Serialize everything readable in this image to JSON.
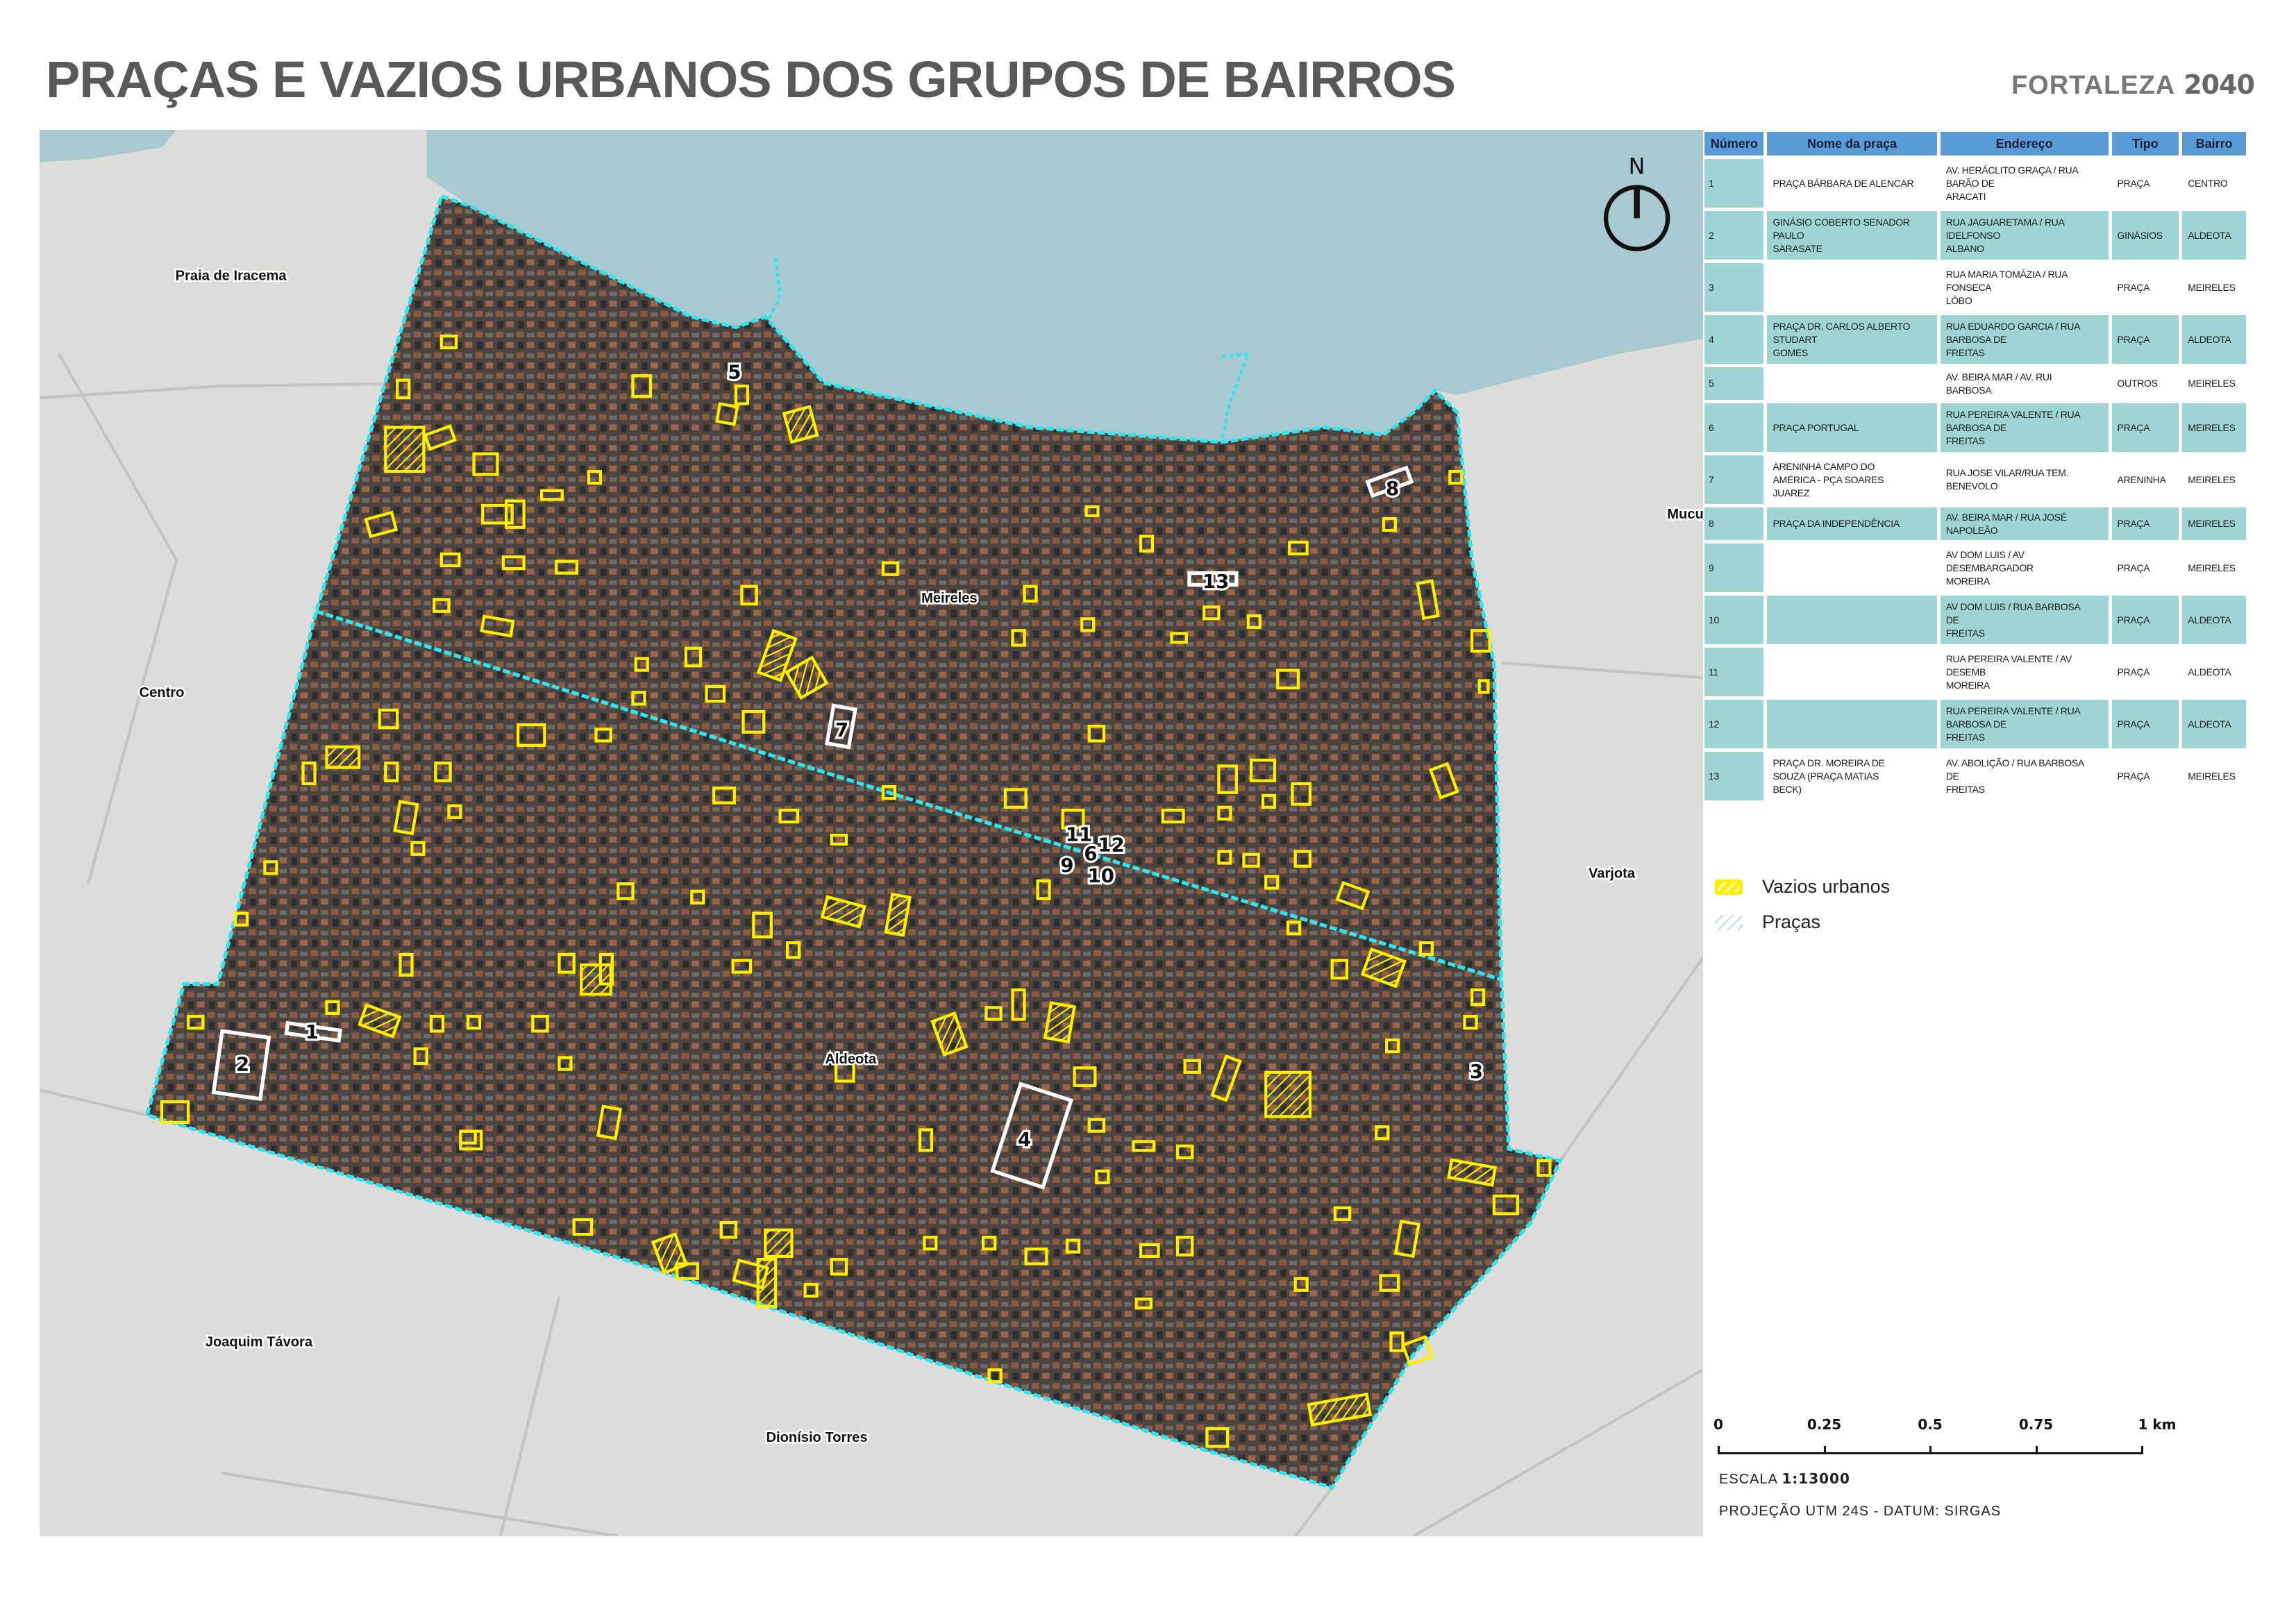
{
  "header": {
    "title": "PRAÇAS E VAZIOS URBANOS DOS GRUPOS DE BAIRROS",
    "brand_name": "FORTALEZA",
    "brand_year": "2040"
  },
  "table": {
    "columns": [
      "Número",
      "Nome da praça",
      "Endereço",
      "Tipo",
      "Bairro"
    ],
    "rows": [
      {
        "numero": "1",
        "nome": "PRAÇA BÁRBARA DE ALENCAR",
        "endereco": "AV. HERÁCLITO GRAÇA / RUA\nBARÃO DE\nARACATI",
        "tipo": "PRAÇA",
        "bairro": "CENTRO"
      },
      {
        "numero": "2",
        "nome": "GINÁSIO COBERTO SENADOR\nPAULO\nSARASATE",
        "endereco": "RUA JAGUARETAMA / RUA\nIDELFONSO\nALBANO",
        "tipo": "GINÁSIOS",
        "bairro": "ALDEOTA"
      },
      {
        "numero": "3",
        "nome": "",
        "endereco": "RUA MARIA TOMÁZIA / RUA\nFONSECA\nLÔBO",
        "tipo": "PRAÇA",
        "bairro": "MEIRELES"
      },
      {
        "numero": "4",
        "nome": "PRAÇA DR. CARLOS ALBERTO\nSTUDART\nGOMES",
        "endereco": "RUA EDUARDO GARCIA / RUA\nBARBOSA DE\nFREITAS",
        "tipo": "PRAÇA",
        "bairro": "ALDEOTA"
      },
      {
        "numero": "5",
        "nome": "",
        "endereco": "AV. BEIRA MAR / AV. RUI\nBARBOSA",
        "tipo": "OUTROS",
        "bairro": "MEIRELES"
      },
      {
        "numero": "6",
        "nome": "PRAÇA PORTUGAL",
        "endereco": "RUA PEREIRA VALENTE / RUA\nBARBOSA DE\nFREITAS",
        "tipo": "PRAÇA",
        "bairro": "MEIRELES"
      },
      {
        "numero": "7",
        "nome": "ARENINHA CAMPO DO\nAMÉRICA - PÇA SOARES\nJUAREZ",
        "endereco": "RUA JOSE VILAR/RUA TEM.\nBENEVOLO",
        "tipo": "ARENINHA",
        "bairro": "MEIRELES"
      },
      {
        "numero": "8",
        "nome": "PRAÇA DA INDEPENDÊNCIA",
        "endereco": "AV. BEIRA MAR / RUA JOSÉ\nNAPOLEÃO",
        "tipo": "PRAÇA",
        "bairro": "MEIRELES"
      },
      {
        "numero": "9",
        "nome": "",
        "endereco": "AV DOM LUIS / AV\nDESEMBARGADOR\nMOREIRA",
        "tipo": "PRAÇA",
        "bairro": "MEIRELES"
      },
      {
        "numero": "10",
        "nome": "",
        "endereco": "AV DOM LUIS / RUA BARBOSA\nDE\nFREITAS",
        "tipo": "PRAÇA",
        "bairro": "ALDEOTA"
      },
      {
        "numero": "11",
        "nome": "",
        "endereco": "RUA PEREIRA VALENTE / AV\nDESEMB\nMOREIRA",
        "tipo": "PRAÇA",
        "bairro": "ALDEOTA"
      },
      {
        "numero": "12",
        "nome": "",
        "endereco": "RUA PEREIRA VALENTE / RUA\nBARBOSA DE\nFREITAS",
        "tipo": "PRAÇA",
        "bairro": "ALDEOTA"
      },
      {
        "numero": "13",
        "nome": "PRAÇA DR. MOREIRA DE\nSOUZA (PRAÇA MATIAS\nBECK)",
        "endereco": "AV. ABOLIÇÃO / RUA BARBOSA\nDE\nFREITAS",
        "tipo": "PRAÇA",
        "bairro": "MEIRELES"
      }
    ]
  },
  "legend": {
    "vazios": "Vazios urbanos",
    "pracas": "Praças"
  },
  "scale": {
    "ticks": [
      "0",
      "0.25",
      "0.5",
      "0.75",
      "1 km"
    ],
    "escala_label": "ESCALA",
    "escala_value": "1:13000",
    "projecao": "PROJEÇÃO UTM 24S - DATUM: SIRGAS"
  },
  "map": {
    "north_label": "N",
    "places": [
      "Praia de Iracema",
      "Centro",
      "Meireles",
      "Aldeota",
      "Varjota",
      "Joaquim Távora",
      "Dionísio Torres",
      "Mucu"
    ],
    "markers": [
      "1",
      "2",
      "3",
      "4",
      "5",
      "6",
      "7",
      "8",
      "9",
      "10",
      "11",
      "12",
      "13"
    ],
    "colors": {
      "vazios": "#ffee00",
      "boundary": "#2ee6f0",
      "pracas": "#ffffff",
      "sea": "#a9c9d0",
      "table_header": "#5b9bd5",
      "table_row": "#9fd4d4"
    }
  }
}
